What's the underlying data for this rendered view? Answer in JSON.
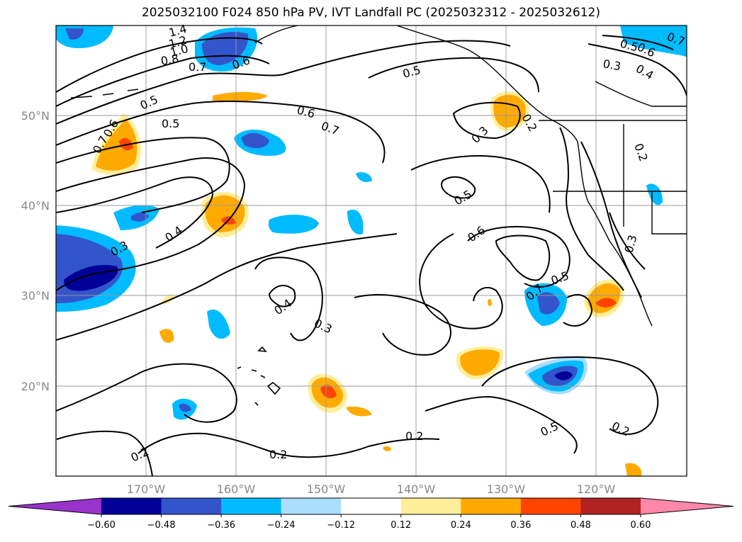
{
  "title": "2025032100 F024 850 hPa PV, IVT Landfall PC (2025032312 - 2025032612)",
  "lat_labels": [
    "50°N",
    "40°N",
    "30°N",
    "20°N"
  ],
  "lon_labels": [
    "170°W",
    "160°W",
    "150°W",
    "140°W",
    "130°W",
    "120°W"
  ],
  "colorbar": {
    "ticks": [
      "−0.60",
      "−0.48",
      "−0.36",
      "−0.24",
      "−0.12",
      "0.12",
      "0.24",
      "0.36",
      "0.48",
      "0.60"
    ],
    "colors": [
      "#9933cc",
      "#000099",
      "#3355cc",
      "#00bbff",
      "#aaddff",
      "#ffffff",
      "#ffee99",
      "#ffaa00",
      "#ff4400",
      "#b22222",
      "#ff88aa"
    ]
  },
  "contour_labels": [
    "1.4",
    "1.2",
    "1.0",
    "0.8",
    "0.7",
    "0.6",
    "0.5",
    "0.5",
    "0.5",
    "0.6",
    "0.7",
    "0.6",
    "0.7",
    "0.3",
    "0.4",
    "0.3",
    "0.4",
    "0.3",
    "0.5",
    "0.6",
    "0.7",
    "0.5",
    "0.3",
    "0.2",
    "0.2",
    "0.2",
    "0.2",
    "0.5",
    "0.2",
    "0.7",
    "0.5",
    "0.6",
    "0.3",
    "0.4",
    "0.2"
  ]
}
